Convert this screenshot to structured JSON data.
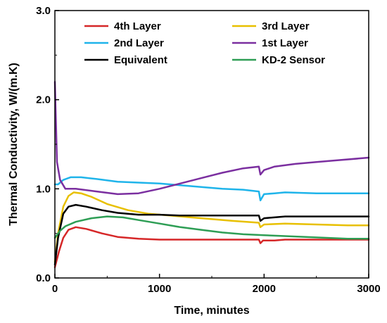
{
  "chart_data": {
    "type": "line",
    "title": "",
    "xlabel": "Time, minutes",
    "ylabel": "Thermal Conductivity, W/(m.K)",
    "xlim": [
      0,
      3000
    ],
    "ylim": [
      0.0,
      3.0
    ],
    "x_ticks": [
      0,
      1000,
      2000,
      3000
    ],
    "x_tick_labels": [
      "0",
      "1000",
      "2000",
      "3000"
    ],
    "y_ticks": [
      0.0,
      1.0,
      2.0,
      3.0
    ],
    "y_tick_labels": [
      "0.0",
      "1.0",
      "2.0",
      "3.0"
    ],
    "grid": false,
    "legend_position": "top",
    "series": [
      {
        "name": "4th Layer",
        "color": "#d62728",
        "points": [
          [
            0,
            0.12
          ],
          [
            40,
            0.3
          ],
          [
            80,
            0.45
          ],
          [
            130,
            0.54
          ],
          [
            200,
            0.57
          ],
          [
            300,
            0.55
          ],
          [
            450,
            0.5
          ],
          [
            600,
            0.46
          ],
          [
            800,
            0.44
          ],
          [
            1000,
            0.43
          ],
          [
            1200,
            0.43
          ],
          [
            1500,
            0.43
          ],
          [
            1800,
            0.43
          ],
          [
            1950,
            0.43
          ],
          [
            1965,
            0.39
          ],
          [
            1990,
            0.42
          ],
          [
            2100,
            0.42
          ],
          [
            2200,
            0.43
          ],
          [
            2500,
            0.43
          ],
          [
            2800,
            0.43
          ],
          [
            3000,
            0.43
          ]
        ]
      },
      {
        "name": "3rd Layer",
        "color": "#e8c000",
        "points": [
          [
            0,
            0.18
          ],
          [
            30,
            0.5
          ],
          [
            80,
            0.8
          ],
          [
            130,
            0.92
          ],
          [
            180,
            0.96
          ],
          [
            250,
            0.95
          ],
          [
            350,
            0.91
          ],
          [
            500,
            0.83
          ],
          [
            700,
            0.76
          ],
          [
            900,
            0.72
          ],
          [
            1100,
            0.7
          ],
          [
            1300,
            0.68
          ],
          [
            1500,
            0.66
          ],
          [
            1700,
            0.64
          ],
          [
            1950,
            0.62
          ],
          [
            1965,
            0.57
          ],
          [
            2000,
            0.6
          ],
          [
            2200,
            0.61
          ],
          [
            2500,
            0.6
          ],
          [
            2800,
            0.59
          ],
          [
            3000,
            0.59
          ]
        ]
      },
      {
        "name": "2nd Layer",
        "color": "#1fb4ea",
        "points": [
          [
            0,
            1.05
          ],
          [
            30,
            1.05
          ],
          [
            80,
            1.1
          ],
          [
            150,
            1.13
          ],
          [
            250,
            1.13
          ],
          [
            400,
            1.11
          ],
          [
            600,
            1.08
          ],
          [
            800,
            1.07
          ],
          [
            1000,
            1.06
          ],
          [
            1200,
            1.04
          ],
          [
            1400,
            1.02
          ],
          [
            1600,
            1.0
          ],
          [
            1800,
            0.99
          ],
          [
            1950,
            0.97
          ],
          [
            1965,
            0.87
          ],
          [
            2000,
            0.94
          ],
          [
            2100,
            0.95
          ],
          [
            2200,
            0.96
          ],
          [
            2500,
            0.95
          ],
          [
            2800,
            0.95
          ],
          [
            3000,
            0.95
          ]
        ]
      },
      {
        "name": "1st Layer",
        "color": "#7b2fa0",
        "points": [
          [
            0,
            2.2
          ],
          [
            20,
            1.3
          ],
          [
            50,
            1.1
          ],
          [
            100,
            1.0
          ],
          [
            200,
            1.0
          ],
          [
            400,
            0.97
          ],
          [
            600,
            0.94
          ],
          [
            800,
            0.95
          ],
          [
            1000,
            1.0
          ],
          [
            1200,
            1.06
          ],
          [
            1400,
            1.12
          ],
          [
            1600,
            1.18
          ],
          [
            1800,
            1.23
          ],
          [
            1950,
            1.25
          ],
          [
            1965,
            1.16
          ],
          [
            2000,
            1.21
          ],
          [
            2100,
            1.25
          ],
          [
            2300,
            1.28
          ],
          [
            2500,
            1.3
          ],
          [
            2700,
            1.32
          ],
          [
            2900,
            1.34
          ],
          [
            3000,
            1.35
          ]
        ]
      },
      {
        "name": "Equivalent",
        "color": "#000000",
        "points": [
          [
            0,
            0.15
          ],
          [
            30,
            0.45
          ],
          [
            80,
            0.72
          ],
          [
            130,
            0.8
          ],
          [
            200,
            0.82
          ],
          [
            300,
            0.8
          ],
          [
            450,
            0.76
          ],
          [
            600,
            0.73
          ],
          [
            800,
            0.71
          ],
          [
            1000,
            0.71
          ],
          [
            1200,
            0.7
          ],
          [
            1500,
            0.7
          ],
          [
            1800,
            0.7
          ],
          [
            1950,
            0.7
          ],
          [
            1965,
            0.64
          ],
          [
            2000,
            0.67
          ],
          [
            2100,
            0.68
          ],
          [
            2200,
            0.69
          ],
          [
            2500,
            0.69
          ],
          [
            2800,
            0.69
          ],
          [
            3000,
            0.69
          ]
        ]
      },
      {
        "name": "KD-2 Sensor",
        "color": "#2e9e55",
        "points": [
          [
            0,
            0.45
          ],
          [
            50,
            0.53
          ],
          [
            100,
            0.58
          ],
          [
            200,
            0.63
          ],
          [
            350,
            0.67
          ],
          [
            500,
            0.69
          ],
          [
            650,
            0.68
          ],
          [
            800,
            0.65
          ],
          [
            1000,
            0.61
          ],
          [
            1200,
            0.57
          ],
          [
            1400,
            0.54
          ],
          [
            1600,
            0.51
          ],
          [
            1800,
            0.49
          ],
          [
            2000,
            0.48
          ],
          [
            2200,
            0.47
          ],
          [
            2400,
            0.46
          ],
          [
            2600,
            0.45
          ],
          [
            2800,
            0.44
          ],
          [
            3000,
            0.44
          ]
        ]
      }
    ]
  }
}
